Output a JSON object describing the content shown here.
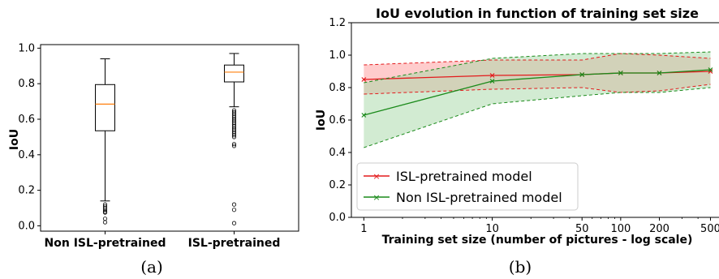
{
  "chart_data": [
    {
      "type": "box",
      "caption": "(a)",
      "ylabel": "IoU",
      "ylim": [
        -0.03,
        1.02
      ],
      "yticks": [
        "0.0",
        "0.2",
        "0.4",
        "0.6",
        "0.8",
        "1.0"
      ],
      "categories": [
        "Non ISL-pretrained",
        "ISL-pretrained"
      ],
      "boxes": [
        {
          "name": "Non ISL-pretrained",
          "whisker_low": 0.14,
          "q1": 0.535,
          "median": 0.685,
          "q3": 0.795,
          "whisker_high": 0.94,
          "outliers": [
            0.12,
            0.11,
            0.1,
            0.09,
            0.08,
            0.075,
            0.04,
            0.02
          ]
        },
        {
          "name": "ISL-pretrained",
          "whisker_low": 0.67,
          "q1": 0.81,
          "median": 0.865,
          "q3": 0.905,
          "whisker_high": 0.97,
          "outliers": [
            0.65,
            0.64,
            0.63,
            0.62,
            0.61,
            0.6,
            0.59,
            0.58,
            0.57,
            0.56,
            0.55,
            0.54,
            0.53,
            0.52,
            0.51,
            0.5,
            0.46,
            0.45,
            0.12,
            0.09,
            0.015
          ]
        }
      ],
      "colors": {
        "median": "#ff7f0e",
        "box": "#000000"
      }
    },
    {
      "type": "line",
      "caption": "(b)",
      "title": "IoU evolution in function of training set size",
      "xlabel": "Training set size (number of pictures - log scale)",
      "ylabel": "IoU",
      "xscale": "log",
      "x": [
        1,
        10,
        50,
        100,
        200,
        500
      ],
      "xticks": [
        "1",
        "10",
        "50",
        "100",
        "200",
        "500"
      ],
      "ylim": [
        0.0,
        1.2
      ],
      "yticks": [
        "0.0",
        "0.2",
        "0.4",
        "0.6",
        "0.8",
        "1.0",
        "1.2"
      ],
      "legend_position": "lower-left",
      "series": [
        {
          "name": "ISL-pretrained model",
          "color": "#e31a1c",
          "fill": "#ff9999",
          "values": [
            0.85,
            0.875,
            0.88,
            0.89,
            0.89,
            0.9
          ],
          "upper": [
            0.94,
            0.97,
            0.97,
            1.01,
            1.0,
            0.98
          ],
          "lower": [
            0.76,
            0.79,
            0.8,
            0.77,
            0.78,
            0.82
          ]
        },
        {
          "name": "Non ISL-pretrained model",
          "color": "#1a8a1a",
          "fill": "#a6d8a6",
          "values": [
            0.63,
            0.84,
            0.88,
            0.89,
            0.89,
            0.91
          ],
          "upper": [
            0.83,
            0.98,
            1.01,
            1.01,
            1.01,
            1.02
          ],
          "lower": [
            0.43,
            0.7,
            0.75,
            0.77,
            0.77,
            0.8
          ]
        }
      ]
    }
  ]
}
